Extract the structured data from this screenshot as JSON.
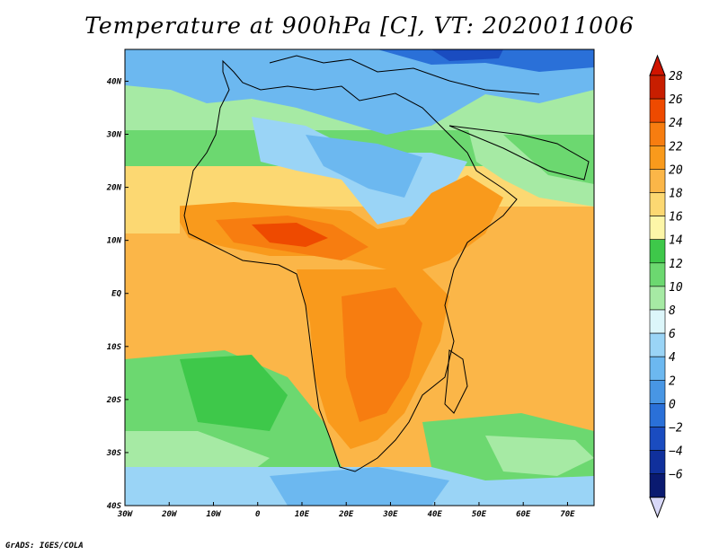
{
  "title": "Temperature at 900hPa [C], VT: 2020011006",
  "footer": "GrADS: IGES/COLA",
  "map": {
    "lon_range": [
      -30,
      76
    ],
    "lat_range": [
      -40,
      46
    ],
    "lon_ticks": [
      {
        "lon": -30,
        "label": "30W"
      },
      {
        "lon": -20,
        "label": "20W"
      },
      {
        "lon": -10,
        "label": "10W"
      },
      {
        "lon": 0,
        "label": "0"
      },
      {
        "lon": 10,
        "label": "10E"
      },
      {
        "lon": 20,
        "label": "20E"
      },
      {
        "lon": 30,
        "label": "30E"
      },
      {
        "lon": 40,
        "label": "40E"
      },
      {
        "lon": 50,
        "label": "50E"
      },
      {
        "lon": 60,
        "label": "60E"
      },
      {
        "lon": 70,
        "label": "70E"
      }
    ],
    "lat_ticks": [
      {
        "lat": 40,
        "label": "40N"
      },
      {
        "lat": 30,
        "label": "30N"
      },
      {
        "lat": 20,
        "label": "20N"
      },
      {
        "lat": 10,
        "label": "10N"
      },
      {
        "lat": 0,
        "label": "EQ"
      },
      {
        "lat": -10,
        "label": "10S"
      },
      {
        "lat": -20,
        "label": "20S"
      },
      {
        "lat": -30,
        "label": "30S"
      },
      {
        "lat": -40,
        "label": "40S"
      }
    ]
  },
  "colorbar": {
    "levels": [
      {
        "value": "28",
        "color": "#c81e00"
      },
      {
        "value": "26",
        "color": "#ee4a00"
      },
      {
        "value": "24",
        "color": "#f77d10"
      },
      {
        "value": "22",
        "color": "#f99a1c"
      },
      {
        "value": "20",
        "color": "#fbb648"
      },
      {
        "value": "18",
        "color": "#fcd872"
      },
      {
        "value": "16",
        "color": "#fdf6a8"
      },
      {
        "value": "14",
        "color": "#3ec84a"
      },
      {
        "value": "12",
        "color": "#6cd870"
      },
      {
        "value": "10",
        "color": "#a6eaa4"
      },
      {
        "value": "8",
        "color": "#dcf6fa"
      },
      {
        "value": "6",
        "color": "#9ad4f6"
      },
      {
        "value": "4",
        "color": "#6cb8f0"
      },
      {
        "value": "2",
        "color": "#4896e4"
      },
      {
        "value": "0",
        "color": "#2a70d8"
      },
      {
        "value": "−2",
        "color": "#1a4cc0"
      },
      {
        "value": "−4",
        "color": "#10309c"
      },
      {
        "value": "−6",
        "color": "#0a1a70"
      }
    ],
    "top_color": "#d01400",
    "bottom_color": "#d8d8f8"
  }
}
